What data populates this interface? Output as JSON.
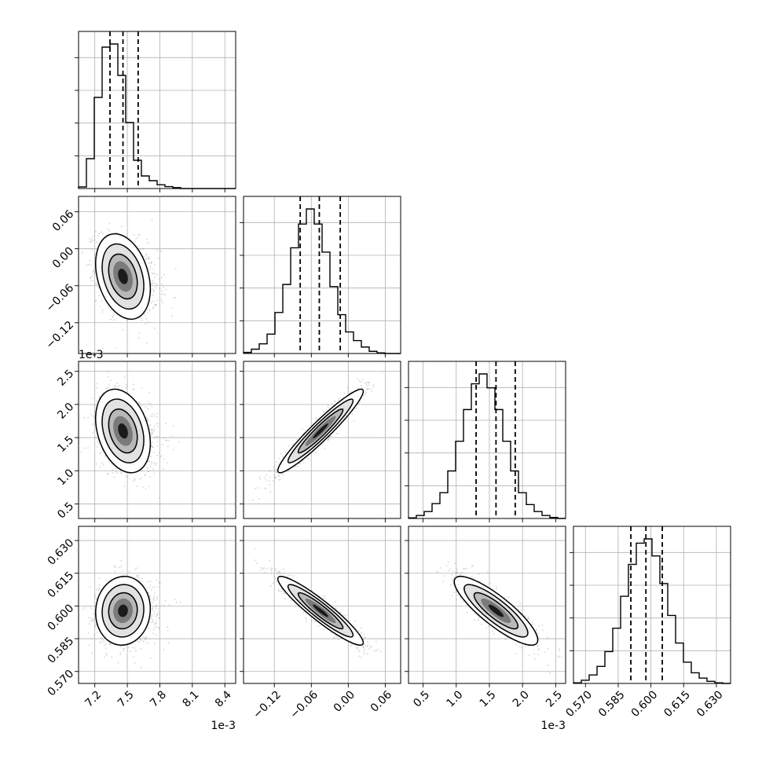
{
  "chart_data": {
    "type": "corner",
    "n_params": 4,
    "colors": {
      "line": "#000000",
      "grid": "#b0b0b0",
      "scatter": "#888888"
    },
    "params": [
      {
        "range": [
          7.05,
          8.5
        ],
        "ticks": [
          7.2,
          7.5,
          7.8,
          8.1,
          8.4
        ],
        "tick_labels": [
          "7.2",
          "7.5",
          "7.8",
          "8.1",
          "8.4"
        ],
        "offset": "1e-3",
        "quantiles": [
          7.34,
          7.46,
          7.6
        ],
        "hist": [
          0.5,
          9.5,
          29,
          45,
          46,
          36,
          21,
          9,
          4,
          2.5,
          1.2,
          0.6,
          0.3,
          0,
          0,
          0,
          0,
          0,
          0,
          0
        ],
        "hist_max": 46
      },
      {
        "range": [
          -0.17,
          0.085
        ],
        "ticks": [
          -0.12,
          -0.06,
          0.0,
          0.06
        ],
        "tick_labels": [
          "−0.12",
          "−0.06",
          "0.00",
          "0.06"
        ],
        "offset": "",
        "quantiles": [
          -0.078,
          -0.047,
          -0.013
        ],
        "hist": [
          0.5,
          2,
          4.5,
          9,
          19,
          32,
          49,
          60,
          67,
          60,
          47,
          31,
          18,
          10,
          6,
          3,
          1,
          0.3,
          0,
          0
        ],
        "hist_max": 67
      },
      {
        "range": [
          0.28,
          2.65
        ],
        "ticks": [
          0.5,
          1.0,
          1.5,
          2.0,
          2.5
        ],
        "tick_labels": [
          "0.5",
          "1.0",
          "1.5",
          "2.0",
          "2.5"
        ],
        "offset": "1e-3",
        "quantiles": [
          1.3,
          1.6,
          1.89
        ],
        "hist": [
          0.3,
          1.5,
          3.5,
          7.5,
          13,
          24,
          39,
          55,
          68,
          73,
          66,
          55,
          39,
          24,
          13,
          7,
          3.5,
          1.5,
          0.5,
          0
        ],
        "hist_max": 73
      },
      {
        "range": [
          0.5645,
          0.6365
        ],
        "ticks": [
          0.57,
          0.585,
          0.6,
          0.615,
          0.63
        ],
        "tick_labels": [
          "0.570",
          "0.585",
          "0.600",
          "0.615",
          "0.630"
        ],
        "offset": "",
        "quantiles": [
          0.5908,
          0.5977,
          0.6052
        ],
        "hist": [
          0.3,
          1.5,
          4,
          8,
          15,
          26,
          41,
          56,
          66,
          68,
          60,
          47,
          32,
          19,
          10,
          5,
          2.5,
          1,
          0.3,
          0
        ],
        "hist_max": 68
      }
    ],
    "pairs": [
      {
        "x": 0,
        "y": 1,
        "mean": [
          7.46,
          -0.045
        ],
        "sd": [
          0.12,
          0.033
        ],
        "corr": -0.3
      },
      {
        "x": 0,
        "y": 2,
        "mean": [
          7.46,
          1.6
        ],
        "sd": [
          0.12,
          0.3
        ],
        "corr": -0.3
      },
      {
        "x": 1,
        "y": 2,
        "mean": [
          -0.045,
          1.6
        ],
        "sd": [
          0.033,
          0.3
        ],
        "corr": 0.95
      },
      {
        "x": 0,
        "y": 3,
        "mean": [
          7.46,
          0.5978
        ],
        "sd": [
          0.12,
          0.0075
        ],
        "corr": 0.05
      },
      {
        "x": 1,
        "y": 3,
        "mean": [
          -0.045,
          0.5978
        ],
        "sd": [
          0.033,
          0.0075
        ],
        "corr": -0.93
      },
      {
        "x": 2,
        "y": 3,
        "mean": [
          1.6,
          0.5978
        ],
        "sd": [
          0.3,
          0.0075
        ],
        "corr": -0.85
      }
    ]
  }
}
